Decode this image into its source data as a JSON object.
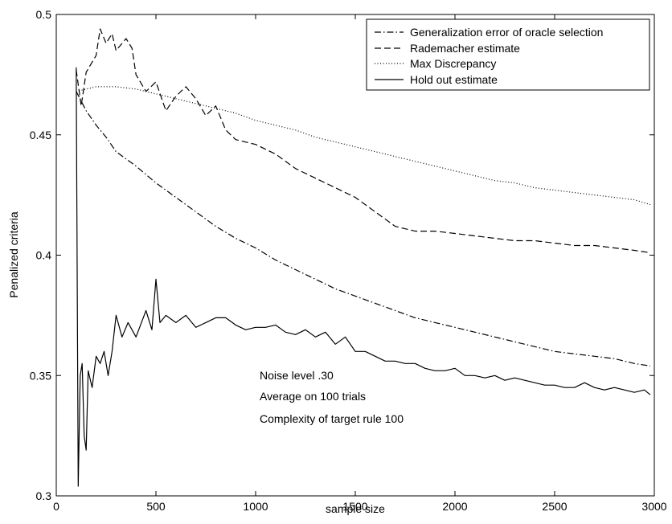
{
  "chart_data": {
    "type": "line",
    "xlabel": "sample size",
    "ylabel": "Penalized criteria",
    "xlim": [
      0,
      3000
    ],
    "ylim": [
      0.3,
      0.5
    ],
    "x_ticks": [
      0,
      500,
      1000,
      1500,
      2000,
      2500,
      3000
    ],
    "y_ticks": [
      0.3,
      0.35,
      0.4,
      0.45,
      0.5
    ],
    "x_tick_labels": [
      "0",
      "500",
      "1000",
      "1500",
      "2000",
      "2500",
      "3000"
    ],
    "y_tick_labels": [
      "0.3",
      "0.35",
      "0.4",
      "0.45",
      "0.5"
    ],
    "grid": false,
    "legend_position": "top-right",
    "annotations": [
      "Noise level .30",
      "Average on 100 trials",
      "Complexity of target rule 100"
    ],
    "series": [
      {
        "name": "Generalization error of oracle selection",
        "style": "dashdot",
        "x": [
          100,
          150,
          200,
          250,
          300,
          400,
          500,
          600,
          700,
          800,
          900,
          1000,
          1100,
          1200,
          1300,
          1400,
          1500,
          1600,
          1700,
          1800,
          1900,
          2000,
          2100,
          2200,
          2300,
          2400,
          2500,
          2600,
          2700,
          2800,
          2900,
          2980
        ],
        "y": [
          0.468,
          0.46,
          0.454,
          0.449,
          0.443,
          0.437,
          0.43,
          0.424,
          0.418,
          0.412,
          0.407,
          0.403,
          0.398,
          0.394,
          0.39,
          0.386,
          0.383,
          0.38,
          0.377,
          0.374,
          0.372,
          0.37,
          0.368,
          0.366,
          0.364,
          0.362,
          0.36,
          0.359,
          0.358,
          0.357,
          0.355,
          0.354
        ]
      },
      {
        "name": "Rademacher estimate",
        "style": "dashed",
        "x": [
          100,
          125,
          150,
          200,
          220,
          250,
          280,
          300,
          350,
          380,
          400,
          450,
          500,
          550,
          600,
          650,
          700,
          750,
          800,
          850,
          900,
          1000,
          1100,
          1200,
          1300,
          1400,
          1500,
          1600,
          1700,
          1800,
          1900,
          2000,
          2100,
          2200,
          2300,
          2400,
          2500,
          2600,
          2700,
          2800,
          2900,
          2980
        ],
        "y": [
          0.477,
          0.462,
          0.476,
          0.483,
          0.494,
          0.488,
          0.492,
          0.485,
          0.49,
          0.486,
          0.475,
          0.468,
          0.472,
          0.46,
          0.466,
          0.47,
          0.465,
          0.458,
          0.462,
          0.452,
          0.448,
          0.446,
          0.442,
          0.436,
          0.432,
          0.428,
          0.424,
          0.418,
          0.412,
          0.41,
          0.41,
          0.409,
          0.408,
          0.407,
          0.406,
          0.406,
          0.405,
          0.404,
          0.404,
          0.403,
          0.402,
          0.401
        ]
      },
      {
        "name": "Max Discrepancy",
        "style": "dotted",
        "x": [
          100,
          200,
          300,
          400,
          500,
          600,
          700,
          800,
          900,
          1000,
          1100,
          1200,
          1300,
          1400,
          1500,
          1600,
          1700,
          1800,
          1900,
          2000,
          2100,
          2200,
          2300,
          2400,
          2500,
          2600,
          2700,
          2800,
          2900,
          2980
        ],
        "y": [
          0.468,
          0.47,
          0.47,
          0.469,
          0.467,
          0.465,
          0.463,
          0.461,
          0.459,
          0.456,
          0.454,
          0.452,
          0.449,
          0.447,
          0.445,
          0.443,
          0.441,
          0.439,
          0.437,
          0.435,
          0.433,
          0.431,
          0.43,
          0.428,
          0.427,
          0.426,
          0.425,
          0.424,
          0.423,
          0.421
        ]
      },
      {
        "name": "Hold out estimate",
        "style": "solid",
        "x": [
          100,
          110,
          120,
          130,
          140,
          150,
          160,
          180,
          200,
          220,
          240,
          260,
          280,
          300,
          330,
          360,
          400,
          450,
          480,
          500,
          520,
          550,
          600,
          650,
          700,
          750,
          800,
          850,
          900,
          950,
          1000,
          1050,
          1100,
          1150,
          1200,
          1250,
          1300,
          1350,
          1400,
          1450,
          1500,
          1550,
          1600,
          1650,
          1700,
          1750,
          1800,
          1850,
          1900,
          1950,
          2000,
          2050,
          2100,
          2150,
          2200,
          2250,
          2300,
          2350,
          2400,
          2450,
          2500,
          2550,
          2600,
          2650,
          2700,
          2750,
          2800,
          2850,
          2900,
          2950,
          2980
        ],
        "y": [
          0.478,
          0.304,
          0.35,
          0.355,
          0.325,
          0.319,
          0.352,
          0.345,
          0.358,
          0.355,
          0.36,
          0.35,
          0.36,
          0.375,
          0.366,
          0.372,
          0.366,
          0.377,
          0.369,
          0.39,
          0.372,
          0.375,
          0.372,
          0.375,
          0.37,
          0.372,
          0.374,
          0.374,
          0.371,
          0.369,
          0.37,
          0.37,
          0.371,
          0.368,
          0.367,
          0.369,
          0.366,
          0.368,
          0.363,
          0.366,
          0.36,
          0.36,
          0.358,
          0.356,
          0.356,
          0.355,
          0.355,
          0.353,
          0.352,
          0.352,
          0.353,
          0.35,
          0.35,
          0.349,
          0.35,
          0.348,
          0.349,
          0.348,
          0.347,
          0.346,
          0.346,
          0.345,
          0.345,
          0.347,
          0.345,
          0.344,
          0.345,
          0.344,
          0.343,
          0.344,
          0.342
        ]
      }
    ]
  }
}
